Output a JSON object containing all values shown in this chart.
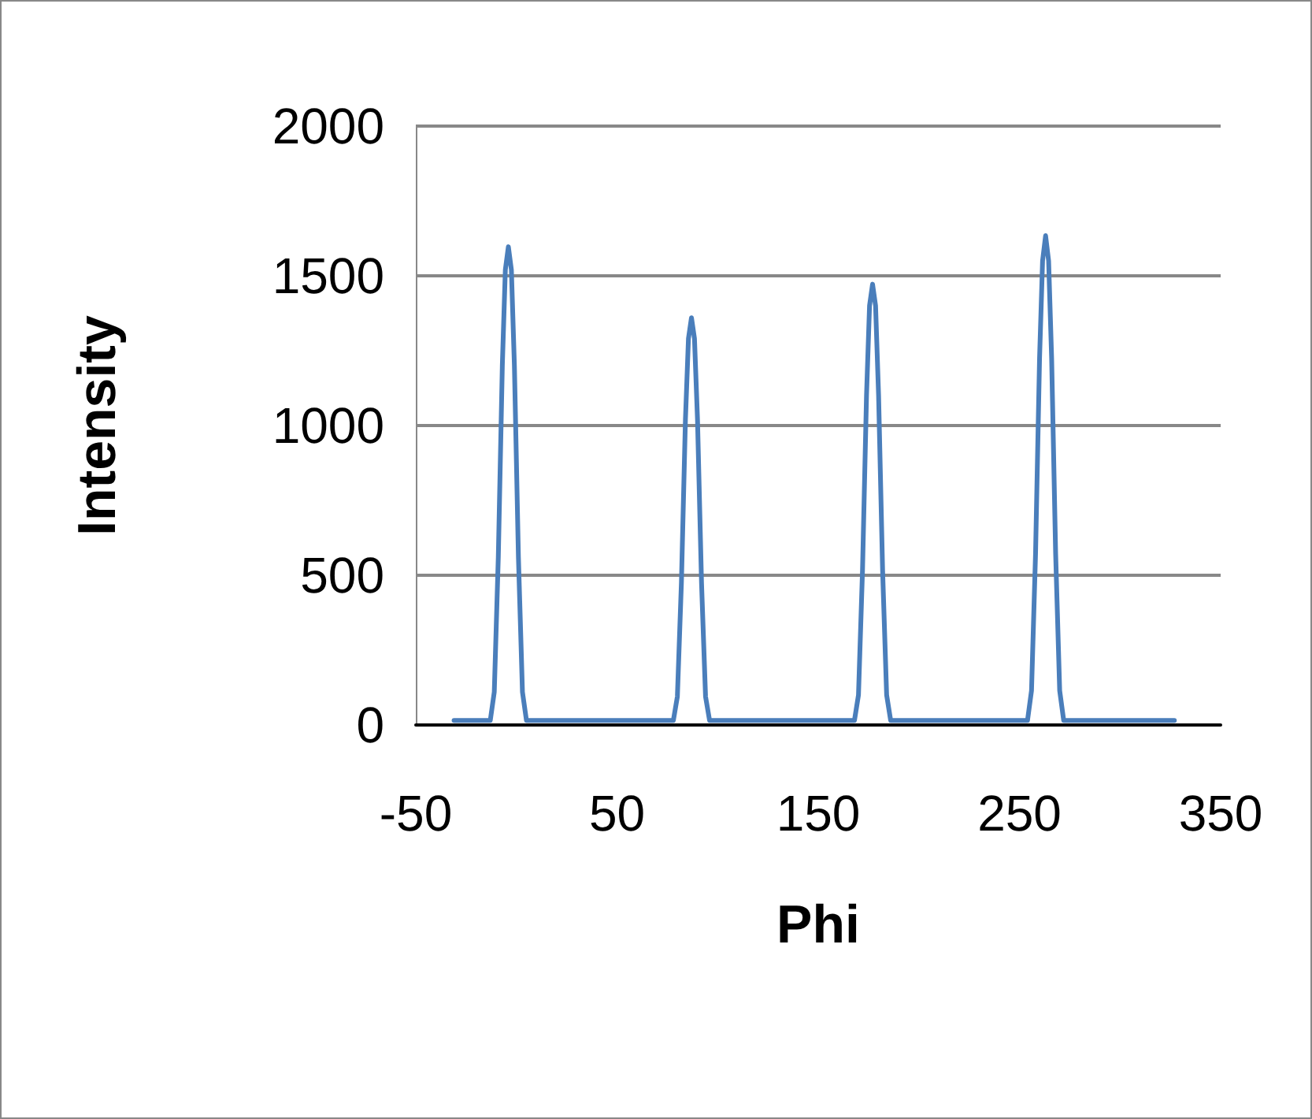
{
  "chart_data": {
    "type": "line",
    "xlabel": "Phi",
    "ylabel": "Intensity",
    "x": [
      -31,
      -13,
      -11,
      -9,
      -7,
      -5.5,
      -4,
      -2.5,
      -1,
      1,
      3,
      5,
      78,
      80,
      82,
      84,
      85.5,
      87,
      88.5,
      90,
      92,
      94,
      96,
      168,
      170,
      172,
      174,
      175.5,
      177,
      178.5,
      180,
      182,
      184,
      186,
      254,
      256,
      258,
      260,
      261.5,
      263,
      264.5,
      266,
      268,
      270,
      272,
      327
    ],
    "series": [
      {
        "color": "#4a7ebb",
        "values": [
          15,
          15,
          110,
          560,
          1200,
          1520,
          1597,
          1520,
          1200,
          560,
          110,
          15,
          15,
          95,
          475,
          1020,
          1290,
          1360,
          1290,
          1020,
          475,
          95,
          15,
          15,
          100,
          515,
          1100,
          1400,
          1472,
          1400,
          1100,
          515,
          100,
          15,
          15,
          115,
          570,
          1225,
          1550,
          1634,
          1550,
          1225,
          570,
          115,
          15,
          15
        ]
      }
    ],
    "xlim": [
      -50,
      350
    ],
    "xticks": [
      -50,
      50,
      150,
      250,
      350
    ],
    "ylim": [
      0,
      2000
    ],
    "yticks": [
      0,
      500,
      1000,
      1500,
      2000
    ],
    "grid": "y",
    "marker": "none",
    "line_style": "solid"
  }
}
